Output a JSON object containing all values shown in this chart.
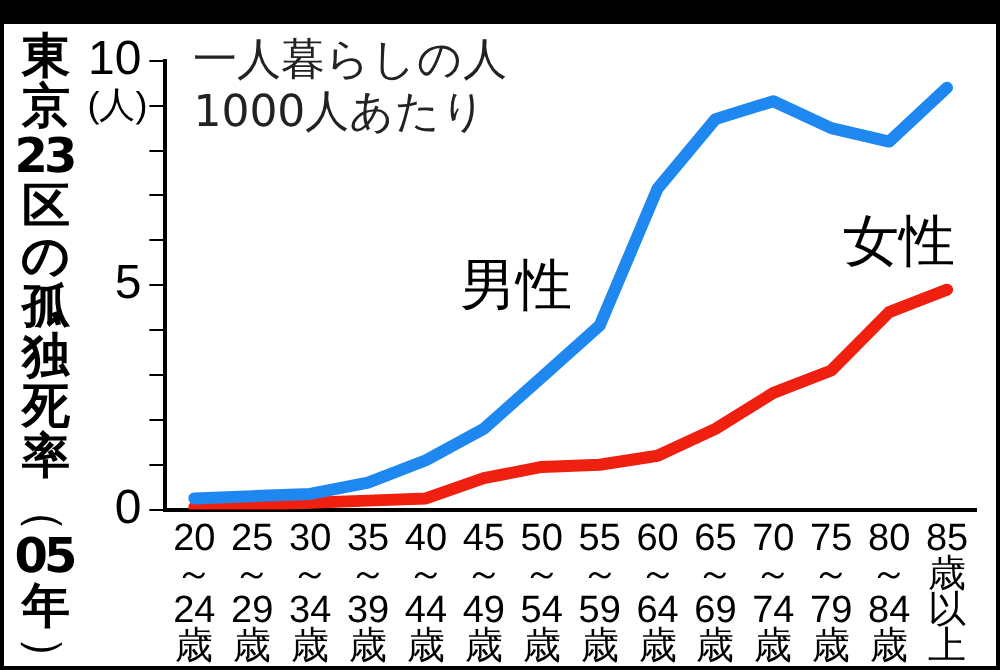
{
  "chart_data": {
    "type": "line",
    "ylabel": "東京23区の孤独死率（05年）",
    "annotations": [
      "一人暮らしの人\n1000人あたり",
      "(人)"
    ],
    "categories": [
      "20～24歳",
      "25～29歳",
      "30～34歳",
      "35～39歳",
      "40～44歳",
      "45～49歳",
      "50～54歳",
      "55～59歳",
      "60～64歳",
      "65～69歳",
      "70～74歳",
      "75～79歳",
      "80～84歳",
      "85歳以上"
    ],
    "series": [
      {
        "name": "男性",
        "color": "#1e88f0",
        "values": [
          0.25,
          0.3,
          0.35,
          0.6,
          1.1,
          1.8,
          2.95,
          4.1,
          7.15,
          8.7,
          9.1,
          8.5,
          8.2,
          9.4
        ]
      },
      {
        "name": "女性",
        "color": "#f02010",
        "values": [
          0.05,
          0.1,
          0.15,
          0.2,
          0.25,
          0.7,
          0.95,
          1.0,
          1.2,
          1.8,
          2.6,
          3.1,
          4.4,
          4.9
        ]
      }
    ],
    "ylim": [
      0,
      10
    ],
    "yticks": [
      0,
      {
        "value": 1,
        "label": null
      },
      {
        "value": 2,
        "label": null
      },
      {
        "value": 3,
        "label": null
      },
      {
        "value": 4,
        "label": null
      },
      5,
      {
        "value": 6,
        "label": null
      },
      {
        "value": 7,
        "label": null
      },
      {
        "value": 8,
        "label": null
      },
      {
        "value": 9,
        "label": null
      },
      10
    ],
    "grid": false,
    "legend": false,
    "marker": "none",
    "line_style": "solid"
  }
}
